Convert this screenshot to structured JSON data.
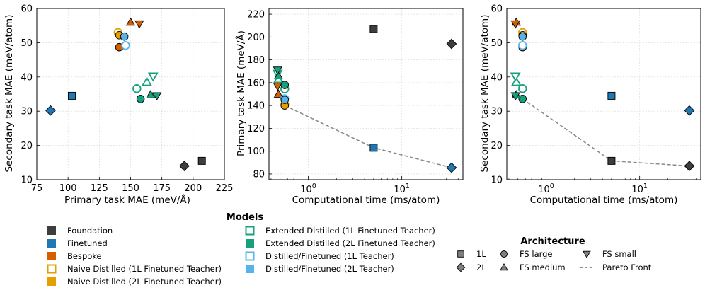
{
  "colors": {
    "Foundation": "#3d3d3d",
    "Finetuned": "#1f77b4",
    "Bespoke": "#d55e00",
    "Naive Distilled (1L Finetuned Teacher)": "#e69f00",
    "Naive Distilled (2L Finetuned Teacher)": "#e69f00",
    "Extended Distilled (1L Finetuned Teacher)": "#17a07c",
    "Extended Distilled (2L Finetuned Teacher)": "#17a07c",
    "Distilled/Finetuned (1L Teacher)": "#56b4e9",
    "Distilled/Finetuned (2L Teacher)": "#56b4e9"
  },
  "chart_data": [
    {
      "type": "scatter",
      "xlabel": "Primary task MAE (meV/Å)",
      "ylabel": "Secondary task MAE (meV/atom)",
      "xscale": "linear",
      "xlim": [
        75,
        225
      ],
      "ylim": [
        10,
        60
      ],
      "xticks": [
        "75",
        "100",
        "125",
        "150",
        "175",
        "200",
        "225"
      ],
      "yticks": [
        "10",
        "20",
        "30",
        "40",
        "50",
        "60"
      ],
      "grid": true,
      "points": [
        {
          "model": "Foundation",
          "arch": "1L",
          "x": 207,
          "y": 15.5
        },
        {
          "model": "Foundation",
          "arch": "2L",
          "x": 193,
          "y": 14
        },
        {
          "model": "Finetuned",
          "arch": "1L",
          "x": 103,
          "y": 34.5
        },
        {
          "model": "Finetuned",
          "arch": "2L",
          "x": 86,
          "y": 30.2
        },
        {
          "model": "Bespoke",
          "arch": "FS large",
          "x": 141,
          "y": 48.7
        },
        {
          "model": "Bespoke",
          "arch": "FS medium",
          "x": 150,
          "y": 56
        },
        {
          "model": "Bespoke",
          "arch": "FS small",
          "x": 157,
          "y": 55.5
        },
        {
          "model": "Naive Distilled (1L Finetuned Teacher)",
          "arch": "FS large",
          "x": 140,
          "y": 53
        },
        {
          "model": "Naive Distilled (2L Finetuned Teacher)",
          "arch": "FS large",
          "x": 141,
          "y": 52.2
        },
        {
          "model": "Extended Distilled (1L Finetuned Teacher)",
          "arch": "FS large",
          "x": 155,
          "y": 36.6
        },
        {
          "model": "Extended Distilled (1L Finetuned Teacher)",
          "arch": "FS medium",
          "x": 163,
          "y": 38.5
        },
        {
          "model": "Extended Distilled (1L Finetuned Teacher)",
          "arch": "FS small",
          "x": 168,
          "y": 40.2
        },
        {
          "model": "Extended Distilled (2L Finetuned Teacher)",
          "arch": "FS large",
          "x": 158,
          "y": 33.6
        },
        {
          "model": "Extended Distilled (2L Finetuned Teacher)",
          "arch": "FS medium",
          "x": 166,
          "y": 34.8
        },
        {
          "model": "Extended Distilled (2L Finetuned Teacher)",
          "arch": "FS small",
          "x": 171,
          "y": 34.5
        },
        {
          "model": "Distilled/Finetuned (1L Teacher)",
          "arch": "FS large",
          "x": 146,
          "y": 49.2
        },
        {
          "model": "Distilled/Finetuned (2L Teacher)",
          "arch": "FS large",
          "x": 145,
          "y": 51.8
        }
      ]
    },
    {
      "type": "scatter",
      "xlabel": "Computational time (ms/atom)",
      "ylabel": "Primary task MAE (meV/Å)",
      "xscale": "log",
      "xlim": [
        0.38,
        45
      ],
      "ylim": [
        75,
        225
      ],
      "yticks": [
        "80",
        "100",
        "120",
        "140",
        "160",
        "180",
        "200",
        "220"
      ],
      "grid": true,
      "points": [
        {
          "model": "Foundation",
          "arch": "1L",
          "x": 5,
          "y": 207
        },
        {
          "model": "Foundation",
          "arch": "2L",
          "x": 34,
          "y": 194
        },
        {
          "model": "Finetuned",
          "arch": "1L",
          "x": 5,
          "y": 103
        },
        {
          "model": "Finetuned",
          "arch": "2L",
          "x": 34,
          "y": 85.5
        },
        {
          "model": "Bespoke",
          "arch": "FS large",
          "x": 0.56,
          "y": 140.5
        },
        {
          "model": "Bespoke",
          "arch": "FS medium",
          "x": 0.48,
          "y": 150
        },
        {
          "model": "Bespoke",
          "arch": "FS small",
          "x": 0.47,
          "y": 157
        },
        {
          "model": "Naive Distilled (1L Finetuned Teacher)",
          "arch": "FS large",
          "x": 0.56,
          "y": 141
        },
        {
          "model": "Naive Distilled (2L Finetuned Teacher)",
          "arch": "FS large",
          "x": 0.56,
          "y": 140
        },
        {
          "model": "Extended Distilled (1L Finetuned Teacher)",
          "arch": "FS large",
          "x": 0.56,
          "y": 154.5
        },
        {
          "model": "Extended Distilled (1L Finetuned Teacher)",
          "arch": "FS medium",
          "x": 0.48,
          "y": 163
        },
        {
          "model": "Extended Distilled (1L Finetuned Teacher)",
          "arch": "FS small",
          "x": 0.47,
          "y": 168
        },
        {
          "model": "Extended Distilled (2L Finetuned Teacher)",
          "arch": "FS large",
          "x": 0.56,
          "y": 158
        },
        {
          "model": "Extended Distilled (2L Finetuned Teacher)",
          "arch": "FS medium",
          "x": 0.48,
          "y": 166
        },
        {
          "model": "Extended Distilled (2L Finetuned Teacher)",
          "arch": "FS small",
          "x": 0.47,
          "y": 171
        },
        {
          "model": "Distilled/Finetuned (1L Teacher)",
          "arch": "FS large",
          "x": 0.56,
          "y": 146
        },
        {
          "model": "Distilled/Finetuned (2L Teacher)",
          "arch": "FS large",
          "x": 0.56,
          "y": 145
        }
      ],
      "pareto_front": [
        [
          0.56,
          140
        ],
        [
          5,
          103
        ],
        [
          34,
          85.5
        ]
      ]
    },
    {
      "type": "scatter",
      "xlabel": "Computational time (ms/atom)",
      "ylabel": "Secondary task MAE (meV/atom)",
      "xscale": "log",
      "xlim": [
        0.38,
        45
      ],
      "ylim": [
        10,
        60
      ],
      "yticks": [
        "10",
        "20",
        "30",
        "40",
        "50",
        "60"
      ],
      "grid": true,
      "points": [
        {
          "model": "Foundation",
          "arch": "1L",
          "x": 5,
          "y": 15.5
        },
        {
          "model": "Foundation",
          "arch": "2L",
          "x": 34,
          "y": 14
        },
        {
          "model": "Finetuned",
          "arch": "1L",
          "x": 5,
          "y": 34.5
        },
        {
          "model": "Finetuned",
          "arch": "2L",
          "x": 34,
          "y": 30.2
        },
        {
          "model": "Bespoke",
          "arch": "FS large",
          "x": 0.56,
          "y": 48.7
        },
        {
          "model": "Bespoke",
          "arch": "FS medium",
          "x": 0.48,
          "y": 56
        },
        {
          "model": "Bespoke",
          "arch": "FS small",
          "x": 0.47,
          "y": 55.5
        },
        {
          "model": "Naive Distilled (1L Finetuned Teacher)",
          "arch": "FS large",
          "x": 0.56,
          "y": 53
        },
        {
          "model": "Naive Distilled (2L Finetuned Teacher)",
          "arch": "FS large",
          "x": 0.56,
          "y": 52.2
        },
        {
          "model": "Extended Distilled (1L Finetuned Teacher)",
          "arch": "FS large",
          "x": 0.56,
          "y": 36.6
        },
        {
          "model": "Extended Distilled (1L Finetuned Teacher)",
          "arch": "FS medium",
          "x": 0.48,
          "y": 38.5
        },
        {
          "model": "Extended Distilled (1L Finetuned Teacher)",
          "arch": "FS small",
          "x": 0.47,
          "y": 40.2
        },
        {
          "model": "Extended Distilled (2L Finetuned Teacher)",
          "arch": "FS large",
          "x": 0.56,
          "y": 33.6
        },
        {
          "model": "Extended Distilled (2L Finetuned Teacher)",
          "arch": "FS medium",
          "x": 0.48,
          "y": 34.8
        },
        {
          "model": "Extended Distilled (2L Finetuned Teacher)",
          "arch": "FS small",
          "x": 0.47,
          "y": 34.5
        },
        {
          "model": "Distilled/Finetuned (1L Teacher)",
          "arch": "FS large",
          "x": 0.56,
          "y": 49.2
        },
        {
          "model": "Distilled/Finetuned (2L Teacher)",
          "arch": "FS large",
          "x": 0.56,
          "y": 51.8
        }
      ],
      "pareto_front": [
        [
          0.56,
          33.6
        ],
        [
          5,
          15.5
        ],
        [
          34,
          14
        ]
      ]
    }
  ],
  "legend_models": {
    "title": "Models",
    "entries": [
      {
        "label": "Foundation",
        "style": "filled"
      },
      {
        "label": "Finetuned",
        "style": "filled"
      },
      {
        "label": "Bespoke",
        "style": "filled"
      },
      {
        "label": "Naive Distilled (1L Finetuned Teacher)",
        "style": "hollow"
      },
      {
        "label": "Naive Distilled (2L Finetuned Teacher)",
        "style": "filled"
      },
      {
        "label": "Extended Distilled (1L Finetuned Teacher)",
        "style": "hollow"
      },
      {
        "label": "Extended Distilled (2L Finetuned Teacher)",
        "style": "filled"
      },
      {
        "label": "Distilled/Finetuned (1L Teacher)",
        "style": "hollow"
      },
      {
        "label": "Distilled/Finetuned (2L Teacher)",
        "style": "filled"
      }
    ]
  },
  "legend_arch": {
    "title": "Architecture",
    "entries": [
      {
        "label": "1L",
        "marker": "square"
      },
      {
        "label": "2L",
        "marker": "diamond"
      },
      {
        "label": "FS large",
        "marker": "circle"
      },
      {
        "label": "FS medium",
        "marker": "triangle-up"
      },
      {
        "label": "FS small",
        "marker": "triangle-down"
      },
      {
        "label": "Pareto Front",
        "marker": "dashed-line"
      }
    ]
  }
}
